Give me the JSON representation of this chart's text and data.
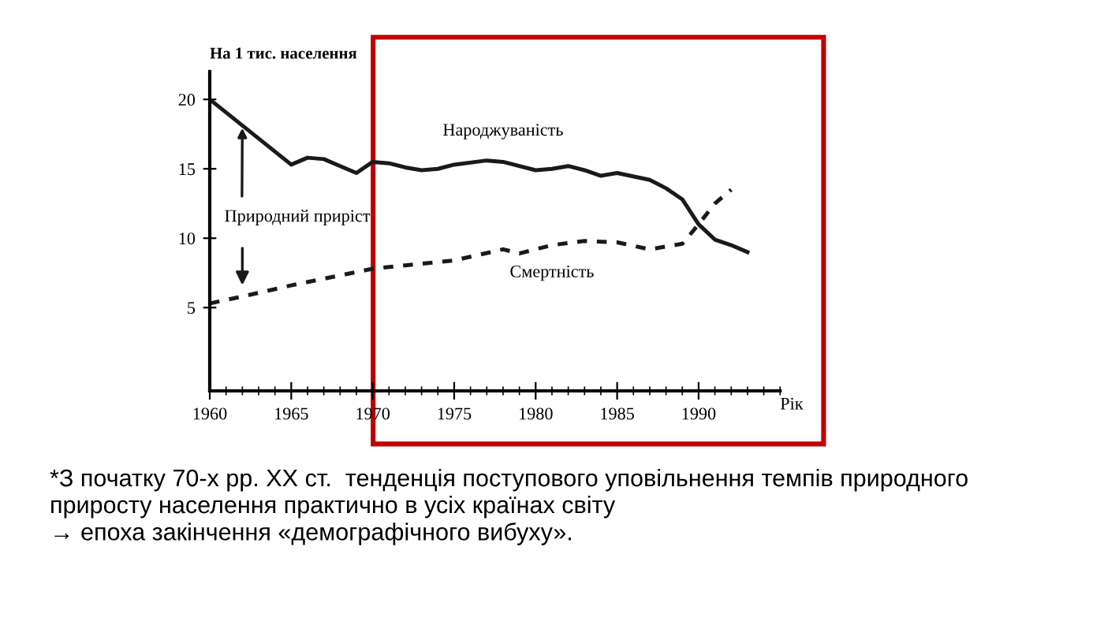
{
  "chart_data": {
    "type": "line",
    "ylabel": "На 1 тис. населення",
    "xlabel": "Рік",
    "xlim": [
      1960,
      1995
    ],
    "xticks": [
      1960,
      1965,
      1970,
      1975,
      1980,
      1985,
      1990
    ],
    "ylim": [
      -1,
      22
    ],
    "yticks": [
      5,
      10,
      15,
      20
    ],
    "grid": false,
    "marker": "none",
    "series": [
      {
        "name": "Народжуваність",
        "color": "#1a1a1a",
        "line_style": "solid",
        "x": [
          1960,
          1965,
          1966,
          1967,
          1968,
          1969,
          1970,
          1971,
          1972,
          1973,
          1974,
          1975,
          1977,
          1978,
          1980,
          1981,
          1982,
          1983,
          1984,
          1985,
          1987,
          1988,
          1989,
          1990,
          1991,
          1992,
          1993
        ],
        "values": [
          20,
          15.3,
          15.8,
          15.7,
          15.2,
          14.7,
          15.5,
          15.4,
          15.1,
          14.9,
          15.0,
          15.3,
          15.6,
          15.5,
          14.9,
          15.0,
          15.2,
          14.9,
          14.5,
          14.7,
          14.2,
          13.6,
          12.8,
          11.0,
          9.9,
          9.5,
          9.0
        ]
      },
      {
        "name": "Смертність",
        "color": "#1a1a1a",
        "line_style": "dashed",
        "x": [
          1960,
          1962,
          1965,
          1970,
          1975,
          1978,
          1979,
          1981,
          1983,
          1985,
          1987,
          1989,
          1990,
          1991,
          1992
        ],
        "values": [
          5.3,
          5.8,
          6.6,
          7.8,
          8.4,
          9.2,
          8.9,
          9.5,
          9.8,
          9.7,
          9.2,
          9.6,
          11.0,
          12.5,
          13.5
        ]
      }
    ],
    "annotations": [
      {
        "text": "Природний приріст",
        "x": 1962,
        "y": 18.1
      },
      "*З початку 70-х рр. XX ст.  тенденція поступового уповільнення темпів природного\nприросту населення практично в усіх країнах світу\n→ епоха закінчення «демографічного вибуху»."
    ]
  }
}
